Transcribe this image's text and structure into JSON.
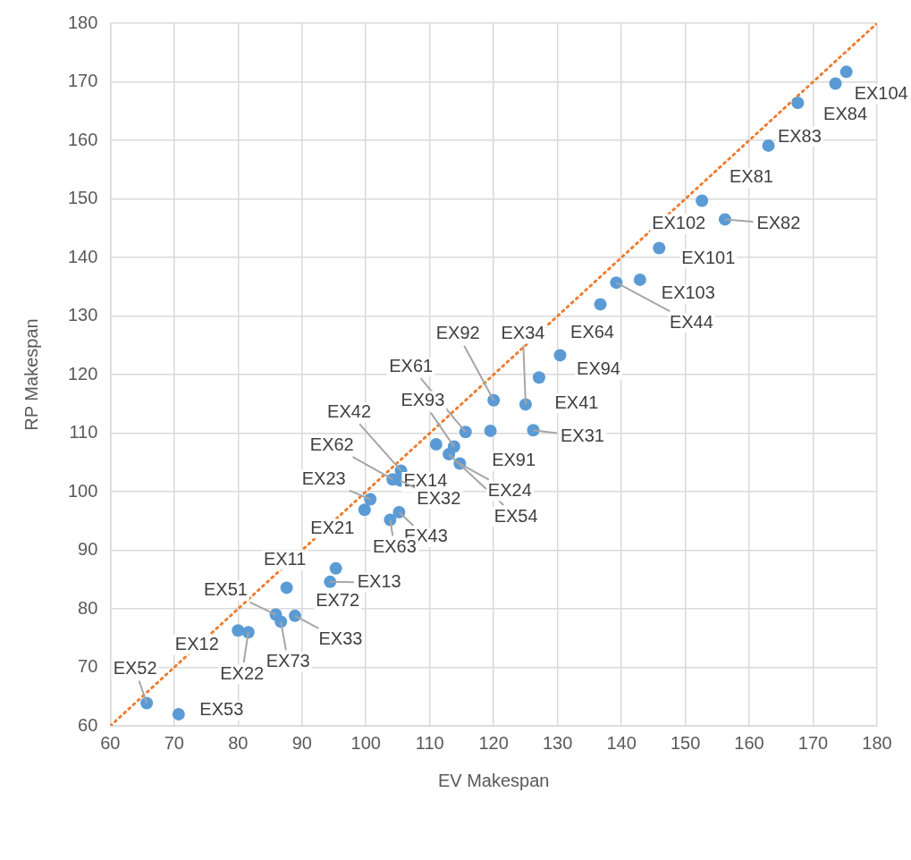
{
  "chart_data": {
    "type": "scatter",
    "xlabel": "EV Makespan",
    "ylabel": "RP Makespan",
    "xlim": [
      60,
      180
    ],
    "ylim": [
      60,
      180
    ],
    "xticks": [
      60,
      70,
      80,
      90,
      100,
      110,
      120,
      130,
      140,
      150,
      160,
      170,
      180
    ],
    "yticks": [
      60,
      70,
      80,
      90,
      100,
      110,
      120,
      130,
      140,
      150,
      160,
      170,
      180
    ],
    "grid": true,
    "series": [
      {
        "type": "scatter",
        "color": "#5b9bd5",
        "marker": "circle",
        "x": [
          175.2,
          173.5,
          167.6,
          163.0,
          152.6,
          156.2,
          145.9,
          142.9,
          139.2,
          136.7,
          130.4,
          127.1,
          125.0,
          120.0,
          115.6,
          119.5,
          126.2,
          113.8,
          111.0,
          113.0,
          114.7,
          105.5,
          104.2,
          105.4,
          100.7,
          99.8,
          105.2,
          103.8,
          95.3,
          94.4,
          87.6,
          85.9,
          86.7,
          88.9,
          80.0,
          81.6,
          65.7,
          70.7
        ],
        "values": [
          171.7,
          169.7,
          166.4,
          159.1,
          149.7,
          146.5,
          141.6,
          136.2,
          135.7,
          132.0,
          123.3,
          119.5,
          114.9,
          115.6,
          110.2,
          110.4,
          110.5,
          107.7,
          108.1,
          106.4,
          104.8,
          103.6,
          102.1,
          101.9,
          98.7,
          96.9,
          96.5,
          95.2,
          86.9,
          84.6,
          83.6,
          79.0,
          77.8,
          78.8,
          76.3,
          76.0,
          63.9,
          62.0
        ],
        "value_labels": [
          "EX104",
          "EX84",
          "EX83",
          "EX81",
          "EX102",
          "EX82",
          "EX101",
          "EX103",
          "EX44",
          "EX64",
          "EX94",
          "EX41",
          "EX34",
          "EX92",
          "EX61",
          "EX91",
          "EX31",
          "EX93",
          "EX14",
          "EX54",
          "EX24",
          "EX42",
          "EX62",
          "EX32",
          "EX23",
          "EX21",
          "EX43",
          "EX63",
          "EX72",
          "EX13",
          "EX11",
          "EX51",
          "EX73",
          "EX33",
          "EX12",
          "EX22",
          "EX52",
          "EX53"
        ]
      },
      {
        "type": "line",
        "color": "#ed7d31",
        "line_style": "dotted",
        "marker": "none",
        "x": [
          60,
          180
        ],
        "values": [
          60,
          180
        ]
      }
    ]
  }
}
